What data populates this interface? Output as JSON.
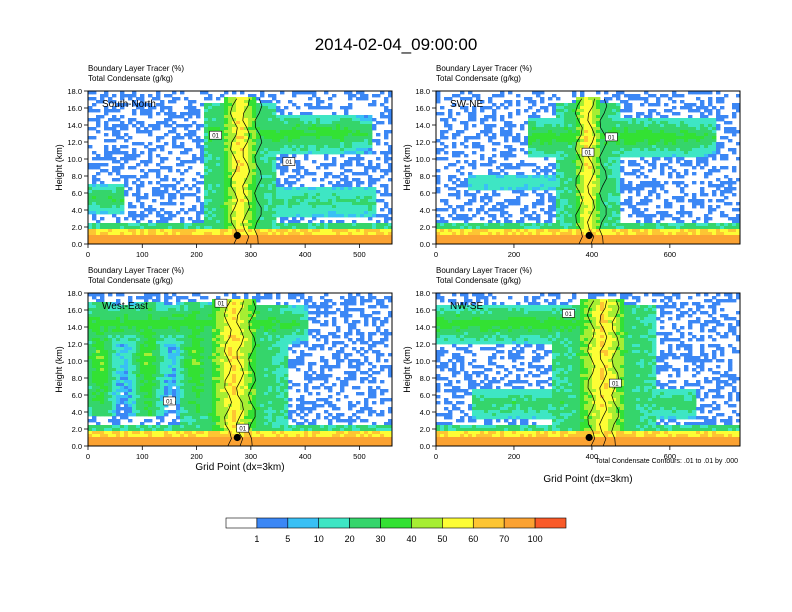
{
  "figure": {
    "title": "2014-02-04_09:00:00",
    "xlabel": "Grid Point (dx=3km)",
    "ylabel": "Height (km)",
    "contour_note": "Total Condensate Contours: .01 to .01 by .000",
    "field_label": "Boundary Layer Tracer   (%)",
    "contour_label": "Total Condensate   (g/kg)",
    "contour_tag": "01"
  },
  "colorbar": {
    "colors": [
      "#ffffff",
      "#3b87f5",
      "#39c0f5",
      "#3ee6c4",
      "#35d56b",
      "#33e133",
      "#a6ee33",
      "#fdfd35",
      "#fdc533",
      "#fba232",
      "#f95a29",
      "#f01423"
    ],
    "labels": [
      "1",
      "5",
      "10",
      "20",
      "30",
      "40",
      "50",
      "60",
      "70",
      "100"
    ]
  },
  "chart_data": [
    {
      "type": "heatmap",
      "name": "South-North",
      "xlim": [
        0,
        560
      ],
      "ylim": [
        0,
        18
      ],
      "xticks": [
        0,
        100,
        200,
        300,
        400,
        500
      ],
      "yticks": [
        0.0,
        2.0,
        4.0,
        6.0,
        8.0,
        10.0,
        12.0,
        14.0,
        16.0,
        18.0
      ],
      "marker": [
        275,
        1.0
      ],
      "tags": [
        [
          235,
          12.8
        ],
        [
          370,
          9.7
        ]
      ]
    },
    {
      "type": "heatmap",
      "name": "SW-NE",
      "xlim": [
        0,
        780
      ],
      "ylim": [
        0,
        18
      ],
      "xticks": [
        0,
        200,
        400,
        600
      ],
      "yticks": [
        0.0,
        2.0,
        4.0,
        6.0,
        8.0,
        10.0,
        12.0,
        14.0,
        16.0,
        18.0
      ],
      "marker": [
        393,
        1.0
      ],
      "tags": [
        [
          390,
          10.8
        ],
        [
          450,
          12.6
        ]
      ]
    },
    {
      "type": "heatmap",
      "name": "West-East",
      "xlim": [
        0,
        560
      ],
      "ylim": [
        0,
        18
      ],
      "xticks": [
        0,
        100,
        200,
        300,
        400,
        500
      ],
      "yticks": [
        0.0,
        2.0,
        4.0,
        6.0,
        8.0,
        10.0,
        12.0,
        14.0,
        16.0,
        18.0
      ],
      "marker": [
        275,
        1.0
      ],
      "tags": [
        [
          245,
          16.8
        ],
        [
          150,
          5.3
        ],
        [
          285,
          2.1
        ]
      ]
    },
    {
      "type": "heatmap",
      "name": "NW-SE",
      "xlim": [
        0,
        780
      ],
      "ylim": [
        0,
        18
      ],
      "xticks": [
        0,
        200,
        400,
        600
      ],
      "yticks": [
        0.0,
        2.0,
        4.0,
        6.0,
        8.0,
        10.0,
        12.0,
        14.0,
        16.0,
        18.0
      ],
      "marker": [
        393,
        1.0
      ],
      "tags": [
        [
          340,
          15.6
        ],
        [
          460,
          7.4
        ]
      ]
    }
  ]
}
